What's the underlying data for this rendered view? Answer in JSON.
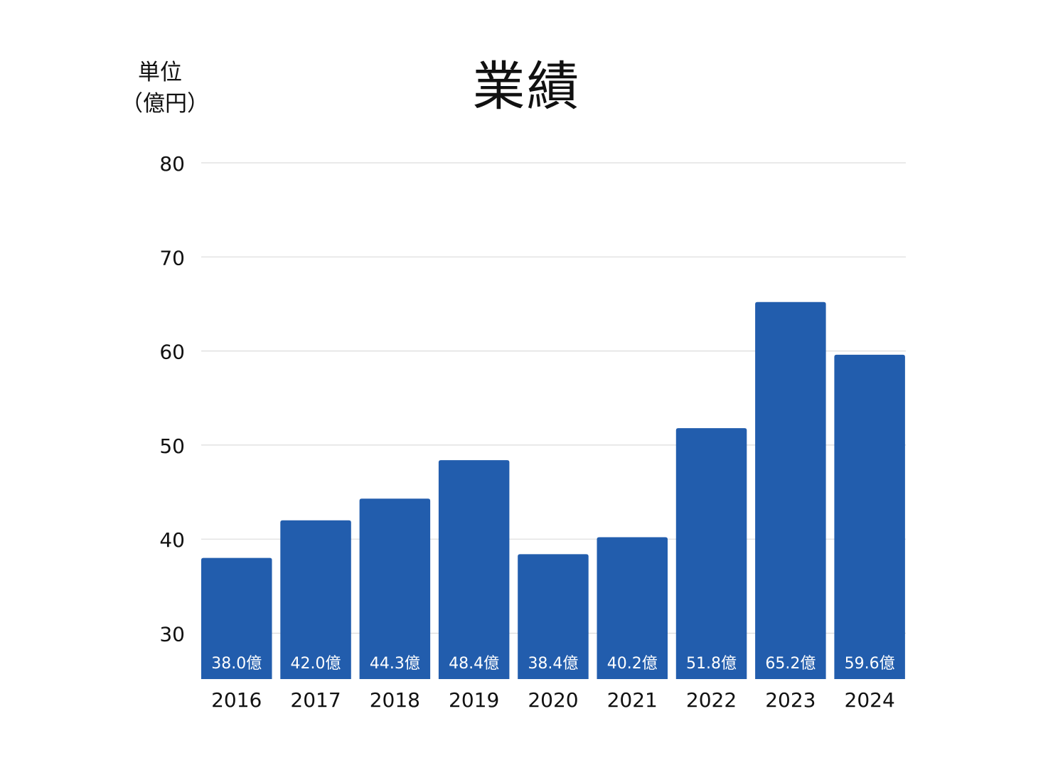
{
  "chart_data": {
    "type": "bar",
    "title": "業績",
    "unit_label": [
      "単位",
      "（億円）"
    ],
    "categories": [
      "2016",
      "2017",
      "2018",
      "2019",
      "2020",
      "2021",
      "2022",
      "2023",
      "2024"
    ],
    "values": [
      38.0,
      42.0,
      44.3,
      48.4,
      38.4,
      40.2,
      51.8,
      65.2,
      59.6
    ],
    "value_labels": [
      "38.0億",
      "42.0億",
      "44.3億",
      "48.4億",
      "38.4億",
      "40.2億",
      "51.8億",
      "65.2億",
      "59.6億"
    ],
    "yticks": [
      30,
      40,
      50,
      60,
      70,
      80
    ],
    "ylim": [
      25,
      80
    ],
    "grid": true,
    "bar_color": "#225dad",
    "grid_color": "#dcdcdc"
  }
}
